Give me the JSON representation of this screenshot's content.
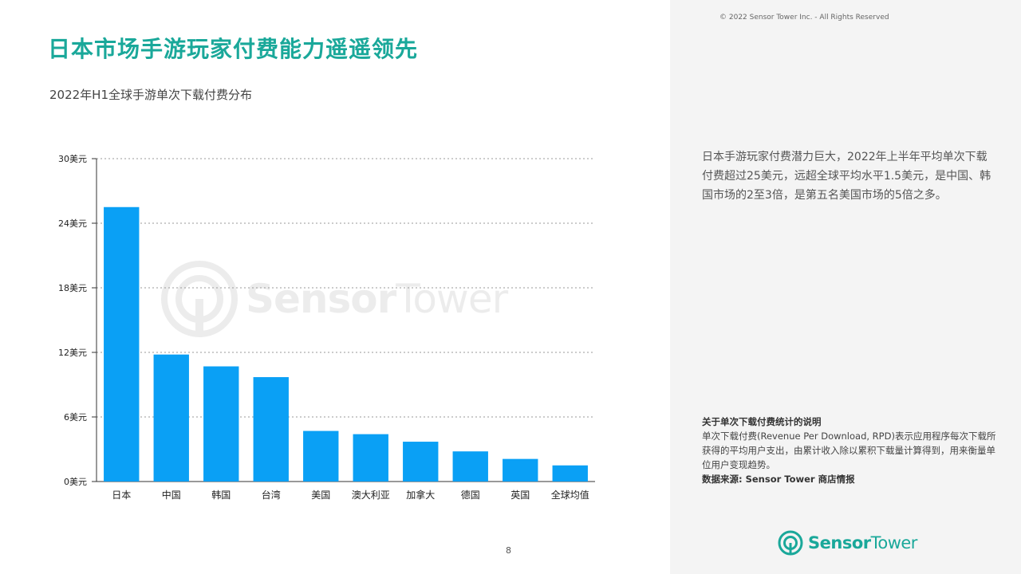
{
  "header": {
    "copyright": "© 2022 Sensor Tower Inc. - All Rights Reserved",
    "title": "日本市场手游玩家付费能力遥遥领先"
  },
  "chart_data": {
    "type": "bar",
    "title": "2022年H1全球手游单次下载付费分布",
    "categories": [
      "日本",
      "中国",
      "韩国",
      "台湾",
      "美国",
      "澳大利亚",
      "加拿大",
      "德国",
      "英国",
      "全球均值"
    ],
    "values": [
      25.5,
      11.8,
      10.7,
      9.7,
      4.7,
      4.4,
      3.7,
      2.8,
      2.1,
      1.5
    ],
    "ylim": [
      0,
      30
    ],
    "yticks": [
      "0美元",
      "6美元",
      "12美元",
      "18美元",
      "24美元",
      "30美元"
    ],
    "ytick_values": [
      0,
      6,
      12,
      18,
      24,
      30
    ],
    "grid": true,
    "bar_color": "#0aa0f5"
  },
  "summary": "日本手游玩家付费潜力巨大，2022年上半年平均单次下载付费超过25美元，远超全球平均水平1.5美元，是中国、韩国市场的2至3倍，是第五名美国市场的5倍之多。",
  "note": {
    "title": "关于单次下载付费统计的说明",
    "body": "单次下载付费(Revenue Per Download, RPD)表示应用程序每次下载所获得的平均用户支出，由累计收入除以累积下载量计算得到，用来衡量单位用户变现趋势。",
    "source": "数据来源: Sensor Tower 商店情报"
  },
  "page_number": "8",
  "brand": {
    "name_part1": "Sensor",
    "name_part2": "Tower",
    "logo_icon": "sensor-tower-logo-icon",
    "accent_color": "#1aa89a"
  },
  "watermark": {
    "text_part1": "Sensor",
    "text_part2": "Tower"
  }
}
